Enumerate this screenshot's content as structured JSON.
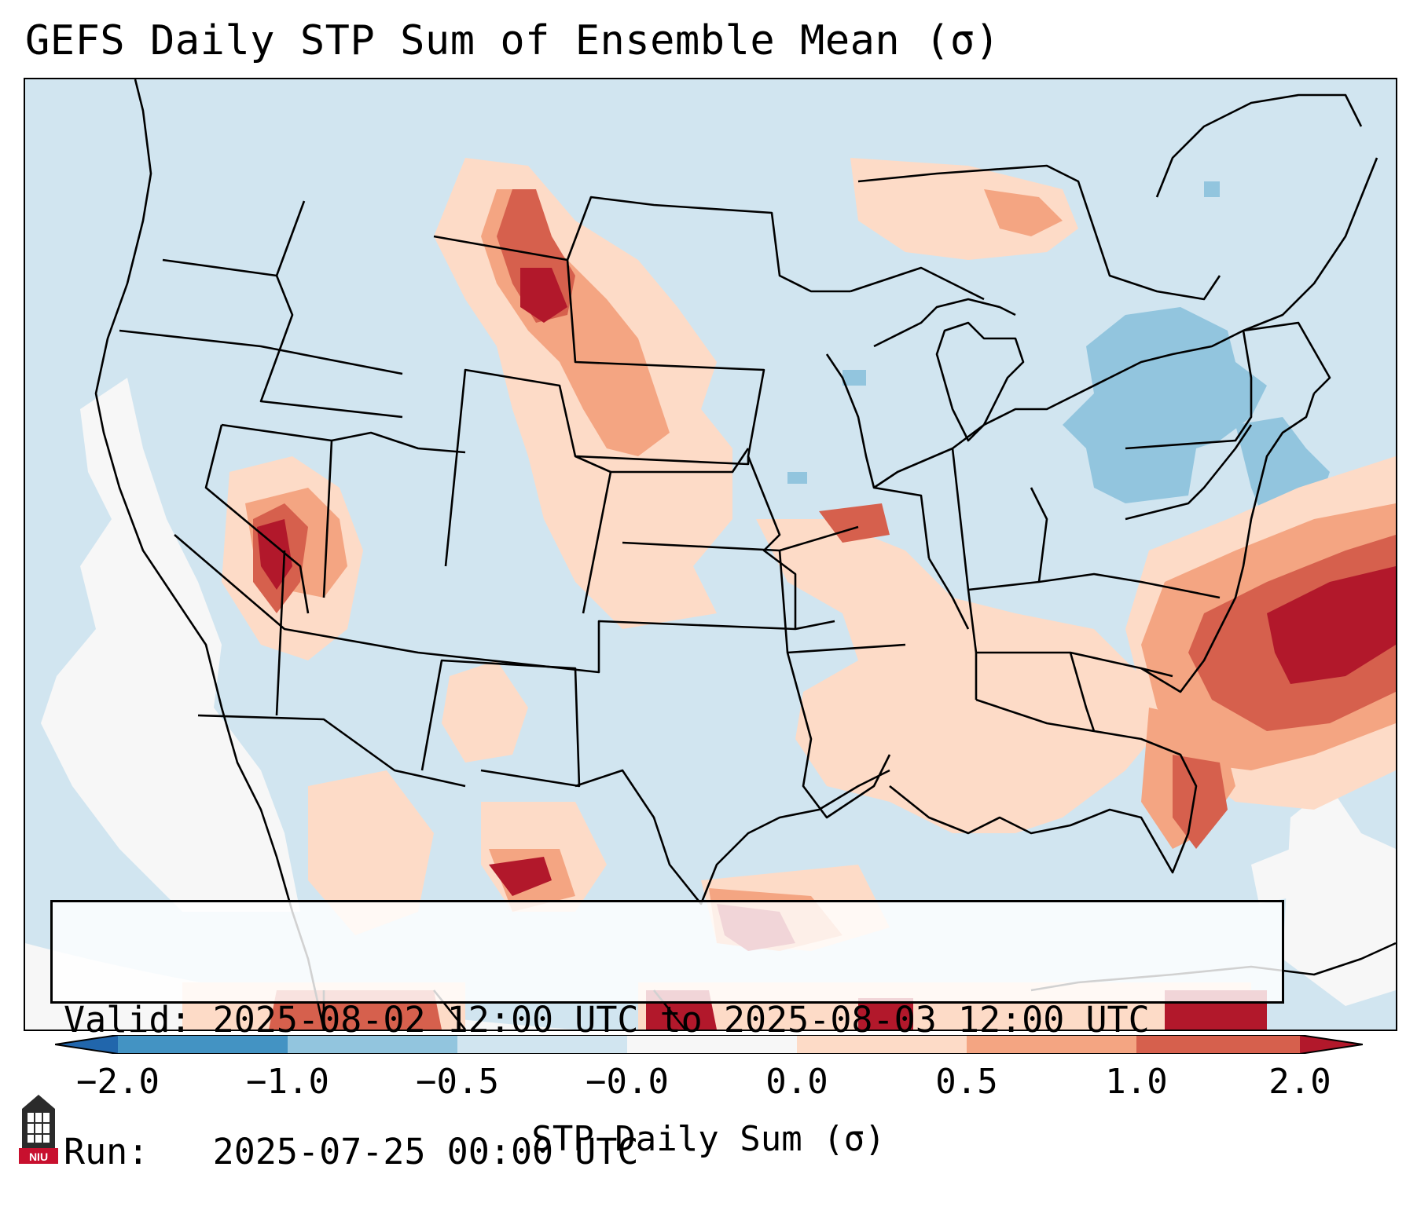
{
  "title": "GEFS Daily STP Sum of Ensemble Mean (σ)",
  "info": {
    "valid_label": "Valid:",
    "valid_value": "2025-08-02 12:00 UTC to 2025-08-03 12:00 UTC",
    "run_label": "Run:",
    "run_value": "2025-07-25 00:00 UTC"
  },
  "colorbar": {
    "label": "STP Daily Sum (σ)",
    "ticks": [
      "−2.0",
      "−1.0",
      "−0.5",
      "−0.0",
      "0.0",
      "0.5",
      "1.0",
      "2.0"
    ],
    "colors": {
      "under": "#2166ac",
      "bins": [
        "#4393c3",
        "#92c5de",
        "#d1e5f0",
        "#f7f7f7",
        "#fddbc7",
        "#f4a582",
        "#d6604d"
      ],
      "over": "#b2182b"
    }
  },
  "map": {
    "background_color": "#d1e5f0",
    "land_border_color": "#000000",
    "region": "Continental United States, southern Canada, northern Mexico"
  },
  "logo": {
    "text": "NIU",
    "icon": "niu-tower-logo-icon"
  }
}
